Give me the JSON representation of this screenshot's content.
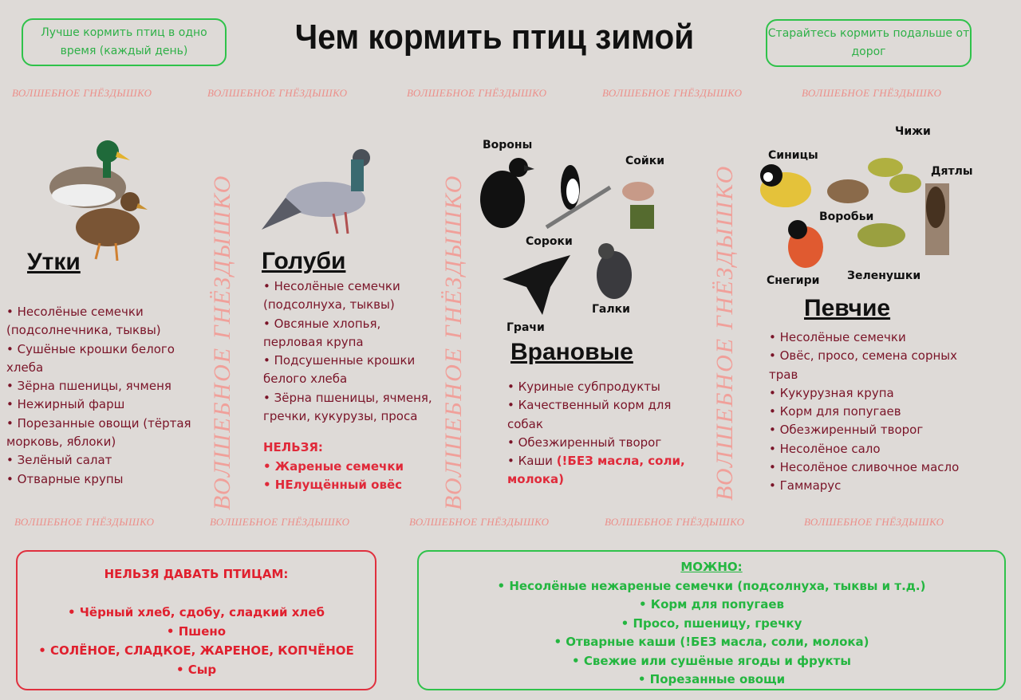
{
  "title": "Чем кормить птиц зимой",
  "tips": {
    "left": "Лучше кормить птиц в одно время (каждый день)",
    "right": "Старайтесь кормить подальше от дорог"
  },
  "watermark": "ВОЛШЕБНОЕ ГНЁЗДЫШКО",
  "colors": {
    "background": "#dedad7",
    "list_text": "#7a1428",
    "warning": "#e0202e",
    "allowed": "#24b640",
    "watermark": "#ec8f8a"
  },
  "ducks": {
    "heading": "Утки",
    "items": [
      "• Несолёные семечки (подсолнечника, тыквы)",
      "• Сушёные крошки белого хлеба",
      "• Зёрна пшеницы, ячменя",
      "• Нежирный фарш",
      "• Порезанные овощи (тёртая морковь, яблоки)",
      "• Зелёный салат",
      "• Отварные крупы"
    ]
  },
  "pigeons": {
    "heading": "Голуби",
    "items": [
      "• Несолёные семечки (подсолнуха, тыквы)",
      "• Овсяные хлопья, перловая крупа",
      "• Подсушенные крошки белого хлеба",
      "• Зёрна пшеницы, ячменя, гречки, кукурузы, проса"
    ],
    "forbidden_label": "НЕЛЬЗЯ:",
    "forbidden": [
      "• Жареные семечки",
      "• НЕлущённый овёс"
    ]
  },
  "corvids": {
    "heading": "Врановые",
    "labels": {
      "crows": "Вороны",
      "magpies": "Сороки",
      "jays": "Сойки",
      "rooks": "Грачи",
      "jackdaws": "Галки"
    },
    "items": [
      "• Куриные субпродукты",
      "• Качественный корм для собак",
      "• Обезжиренный творог"
    ],
    "last_item_prefix": "• Каши ",
    "last_item_note": "(!БЕЗ масла, соли, молока)"
  },
  "songbirds": {
    "heading": "Певчие",
    "labels": {
      "tits": "Синицы",
      "siskins": "Чижи",
      "woodpeckers": "Дятлы",
      "sparrows": "Воробьи",
      "bullfinches": "Снегири",
      "greenfinches": "Зеленушки"
    },
    "items": [
      "• Несолёные семечки",
      "• Овёс, просо, семена сорных трав",
      "• Кукурузная крупа",
      "• Корм для попугаев",
      "• Обезжиренный творог",
      "• Несолёное сало",
      "• Несолёное сливочное масло",
      "• Гаммарус"
    ]
  },
  "forbidden_box": {
    "title": "НЕЛЬЗЯ ДАВАТЬ ПТИЦАМ:",
    "items": [
      "• Чёрный хлеб, сдобу, сладкий хлеб",
      "• Пшено",
      "• СОЛЁНОЕ, СЛАДКОЕ, ЖАРЕНОЕ, КОПЧЁНОЕ",
      "• Сыр"
    ]
  },
  "allowed_box": {
    "title": "МОЖНО:",
    "items": [
      "• Несолёные нежареные семечки (подсолнуха, тыквы и т.д.)",
      "• Корм для попугаев",
      "• Просо, пшеницу, гречку",
      "• Отварные каши (!БЕЗ масла, соли, молока)",
      "• Свежие или сушёные ягоды и фрукты",
      "• Порезанные овощи"
    ]
  }
}
